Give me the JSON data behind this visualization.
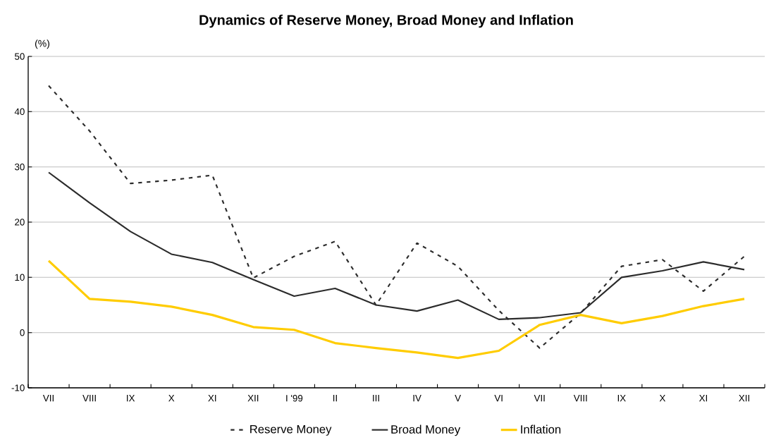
{
  "chart_data": {
    "type": "line",
    "title": "Dynamics of Reserve Money, Broad Money and Inflation",
    "ylabel": "(%)",
    "categories": [
      "VII",
      "VIII",
      "IX",
      "X",
      "XI",
      "XII",
      "I '99",
      "II",
      "III",
      "IV",
      "V",
      "VI",
      "VII",
      "VIII",
      "IX",
      "X",
      "XI",
      "XII"
    ],
    "series": [
      {
        "name": "Reserve Money",
        "color": "#2b2b2b",
        "line_style": "dashed",
        "values": [
          44.7,
          36.5,
          27,
          27.6,
          28.5,
          9.9,
          13.8,
          16.5,
          5,
          16.2,
          12,
          4,
          -2.8,
          3.5,
          12,
          13.2,
          7.5,
          13.8
        ]
      },
      {
        "name": "Broad Money",
        "color": "#2b2b2b",
        "line_style": "solid",
        "values": [
          29,
          23.5,
          18.3,
          14.2,
          12.7,
          9.6,
          6.6,
          8,
          5,
          3.9,
          5.9,
          2.4,
          2.7,
          3.6,
          10,
          11.2,
          12.8,
          11.4
        ]
      },
      {
        "name": "Inflation",
        "color": "#ffcc00",
        "line_style": "solid",
        "values": [
          13,
          6.1,
          5.6,
          4.7,
          3.2,
          1,
          0.5,
          -1.9,
          -2.8,
          -3.6,
          -4.6,
          -3.3,
          1.4,
          3.2,
          1.7,
          3,
          4.8,
          6.1
        ]
      }
    ],
    "ylim": [
      -10,
      50
    ],
    "yticks": [
      -10,
      0,
      10,
      20,
      30,
      40,
      50
    ],
    "grid": "y",
    "legend": "bottom",
    "marker": "none"
  }
}
